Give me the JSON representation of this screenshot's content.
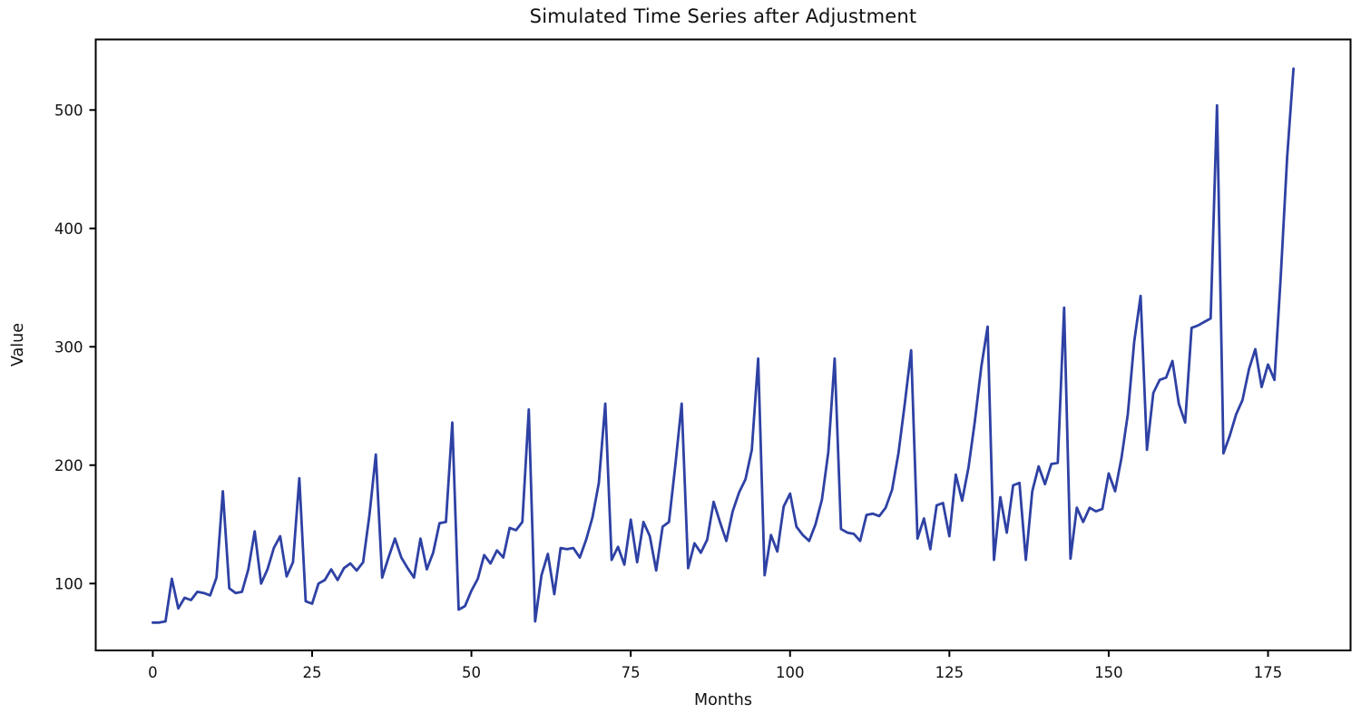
{
  "figure": {
    "title": "Simulated Time Series after Adjustment",
    "xlabel": "Months",
    "ylabel": "Value"
  },
  "chart_data": {
    "type": "line",
    "title": "Simulated Time Series after Adjustment",
    "xlabel": "Months",
    "ylabel": "Value",
    "x_unit": "month index, one point per month",
    "x_range": [
      0,
      179
    ],
    "n_points": 180,
    "values": [
      67,
      67,
      68,
      104,
      79,
      88,
      86,
      93,
      92,
      90,
      105,
      178,
      96,
      92,
      93,
      112,
      144,
      100,
      112,
      130,
      140,
      106,
      118,
      189,
      85,
      83,
      100,
      103,
      112,
      103,
      113,
      117,
      111,
      118,
      158,
      209,
      105,
      122,
      138,
      122,
      113,
      105,
      138,
      112,
      126,
      151,
      152,
      236,
      78,
      81,
      94,
      104,
      124,
      117,
      128,
      122,
      147,
      145,
      152,
      247,
      68,
      107,
      125,
      91,
      130,
      129,
      130,
      122,
      137,
      156,
      185,
      252,
      120,
      131,
      116,
      154,
      118,
      152,
      140,
      111,
      148,
      152,
      200,
      252,
      113,
      134,
      126,
      137,
      169,
      152,
      136,
      161,
      177,
      188,
      213,
      290,
      107,
      141,
      127,
      165,
      176,
      148,
      141,
      136,
      150,
      171,
      211,
      290,
      146,
      143,
      142,
      136,
      158,
      159,
      157,
      164,
      179,
      210,
      252,
      297,
      138,
      155,
      129,
      166,
      168,
      140,
      192,
      170,
      198,
      237,
      283,
      317,
      120,
      173,
      143,
      183,
      185,
      120,
      178,
      199,
      184,
      201,
      202,
      333,
      121,
      164,
      152,
      164,
      161,
      163,
      193,
      178,
      206,
      243,
      304,
      343,
      213,
      261,
      272,
      274,
      288,
      252,
      236,
      316,
      318,
      321,
      324,
      504,
      210,
      225,
      243,
      255,
      281,
      298,
      266,
      285,
      272,
      360,
      460,
      535
    ],
    "annual_peaks": {
      "months": [
        11,
        23,
        35,
        47,
        59,
        71,
        83,
        95,
        107,
        119,
        131,
        143,
        155,
        167,
        179
      ],
      "values": [
        178,
        189,
        209,
        236,
        247,
        252,
        252,
        290,
        290,
        297,
        317,
        333,
        343,
        504,
        535
      ]
    },
    "xticks": [
      0,
      25,
      50,
      75,
      100,
      125,
      150,
      175
    ],
    "yticks": [
      100,
      200,
      300,
      400,
      500
    ],
    "xlim": [
      -8.95,
      187.95
    ],
    "ylim": [
      43.5,
      559.6
    ],
    "grid": false,
    "legend": "none",
    "line_color": "#2e41a4",
    "axis_color": "#000000",
    "background_color": "#ffffff"
  }
}
